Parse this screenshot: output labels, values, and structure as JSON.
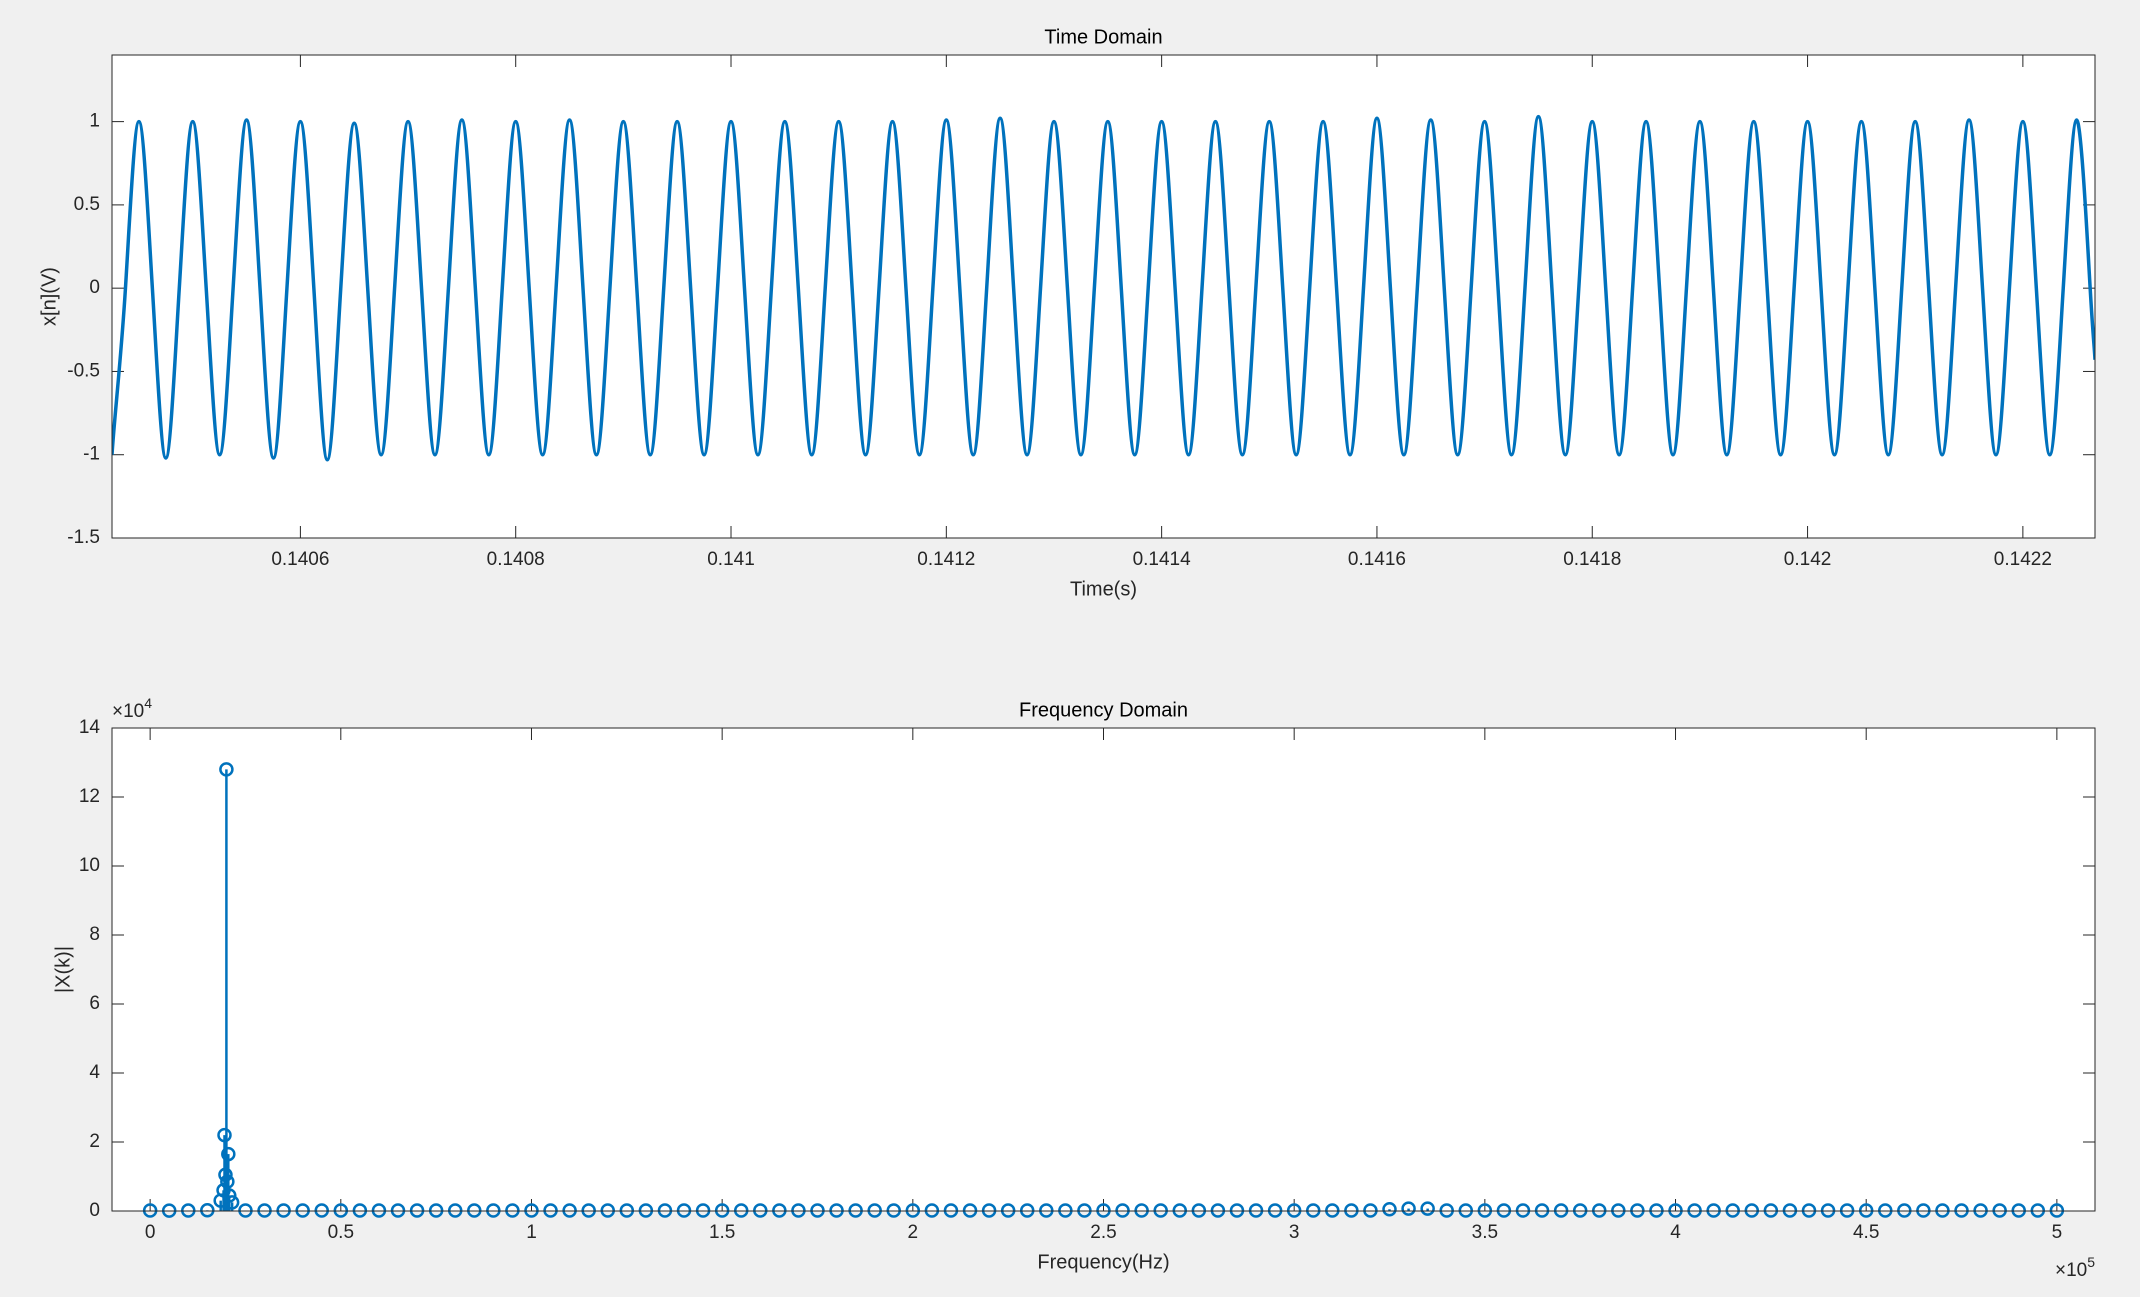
{
  "chart_data": [
    {
      "type": "line",
      "title": "Time Domain",
      "xlabel": "Time(s)",
      "ylabel": "x[n](V)",
      "xlim": [
        0.140425,
        0.142267
      ],
      "ylim": [
        -1.5,
        1.4
      ],
      "xticks": [
        0.1406,
        0.1408,
        0.141,
        0.1412,
        0.1414,
        0.1416,
        0.1418,
        0.142,
        0.1422
      ],
      "yticks": [
        -1.5,
        -1,
        -0.5,
        0,
        0.5,
        1
      ],
      "x": [
        0.140425,
        0.1404375,
        0.14045,
        0.1404625,
        0.140475,
        0.1404875,
        0.1405,
        0.1405125,
        0.140525,
        0.1405375,
        0.14055,
        0.1405625,
        0.140575,
        0.1405875,
        0.1406,
        0.1406125,
        0.140625,
        0.1406375,
        0.14065,
        0.1406625,
        0.140675,
        0.1406875,
        0.1407,
        0.1407125,
        0.140725,
        0.1407375,
        0.14075,
        0.1407625,
        0.140775,
        0.1407875,
        0.1408,
        0.1408125,
        0.140825,
        0.1408375,
        0.14085,
        0.1408625,
        0.140875,
        0.1408875,
        0.1409,
        0.1409125,
        0.140925,
        0.1409375,
        0.14095,
        0.1409625,
        0.140975,
        0.1409875,
        0.141,
        0.1410125,
        0.141025,
        0.1410375,
        0.14105,
        0.1410625,
        0.141075,
        0.1410875,
        0.1411,
        0.1411125,
        0.141125,
        0.1411375,
        0.14115,
        0.1411625,
        0.141175,
        0.1411875,
        0.1412,
        0.1412125,
        0.141225,
        0.1412375,
        0.14125,
        0.1412625,
        0.141275,
        0.1412875,
        0.1413,
        0.1413125,
        0.141325,
        0.1413375,
        0.14135,
        0.1413625,
        0.141375,
        0.1413875,
        0.1414,
        0.1414125,
        0.141425,
        0.1414375,
        0.14145,
        0.1414625,
        0.141475,
        0.1414875,
        0.1415,
        0.1415125,
        0.141525,
        0.1415375,
        0.14155,
        0.1415625,
        0.141575,
        0.1415875,
        0.1416,
        0.1416125,
        0.141625,
        0.1416375,
        0.14165,
        0.1416625,
        0.141675,
        0.1416875,
        0.1417,
        0.1417125,
        0.141725,
        0.1417375,
        0.14175,
        0.1417625,
        0.141775,
        0.1417875,
        0.1418,
        0.1418125,
        0.141825,
        0.1418375,
        0.14185,
        0.1418625,
        0.141875,
        0.1418875,
        0.1419,
        0.1419125,
        0.141925,
        0.1419375,
        0.14195,
        0.1419625,
        0.141975,
        0.1419875,
        0.142,
        0.1420125,
        0.142025,
        0.1420375,
        0.14205,
        0.1420625,
        0.142075,
        0.1420875,
        0.1421,
        0.1421125,
        0.142125,
        0.1421375,
        0.14215,
        0.1421625,
        0.142175,
        0.1421875,
        0.1422,
        0.1422125,
        0.142225,
        0.1422375,
        0.14225,
        0.1422625,
        0.142267
      ],
      "series": [
        {
          "color": "#0072bd",
          "values": [
            -1,
            0,
            1,
            0,
            -1.02,
            0,
            1,
            0,
            -1,
            0,
            1.01,
            0,
            -1.02,
            0,
            1,
            0,
            -1.03,
            0,
            0.99,
            0,
            -1,
            0,
            1,
            0,
            -1,
            0,
            1.01,
            0,
            -1,
            0,
            1,
            0,
            -1,
            0,
            1.01,
            0,
            -1,
            0,
            1,
            0,
            -1,
            0,
            1,
            0,
            -1,
            0,
            1,
            0,
            -1,
            0,
            1,
            0,
            -1,
            0,
            1,
            0,
            -1,
            0,
            1,
            0,
            -1,
            0,
            1.01,
            0,
            -1,
            0,
            1.02,
            0,
            -1,
            0,
            1,
            0,
            -1,
            0,
            1,
            0,
            -1,
            0,
            1,
            0,
            -1,
            0,
            1,
            0,
            -1,
            0,
            1,
            0,
            -1,
            0,
            1,
            0,
            -1,
            0,
            1.02,
            0,
            -1,
            0,
            1.01,
            0,
            -1,
            0,
            1,
            0,
            -1,
            0,
            1.03,
            0,
            -1,
            0,
            1,
            0,
            -1,
            0,
            1,
            0,
            -1,
            0,
            1,
            0,
            -1,
            0,
            1,
            0,
            -1,
            0,
            1,
            0,
            -1,
            0,
            1,
            0,
            -1,
            0,
            1,
            0,
            -1,
            0,
            1.01,
            0,
            -1,
            0,
            1,
            0,
            -1,
            0,
            1.01,
            0,
            -0.43
          ]
        }
      ]
    },
    {
      "type": "stem",
      "title": "Frequency Domain",
      "xlabel": "Frequency(Hz)",
      "ylabel": "|X(k)|",
      "y_scale_label": {
        "base": "×10",
        "exponent": "4"
      },
      "x_scale_label": {
        "base": "×10",
        "exponent": "5"
      },
      "xlim": [
        -10000,
        510000
      ],
      "ylim": [
        0,
        140000
      ],
      "xticks": [
        0,
        {
          "value": 50000,
          "label": "0.5"
        },
        {
          "value": 100000,
          "label": "1"
        },
        {
          "value": 150000,
          "label": "1.5"
        },
        {
          "value": 200000,
          "label": "2"
        },
        {
          "value": 250000,
          "label": "2.5"
        },
        {
          "value": 300000,
          "label": "3"
        },
        {
          "value": 350000,
          "label": "3.5"
        },
        {
          "value": 400000,
          "label": "4"
        },
        {
          "value": 450000,
          "label": "4.5"
        },
        {
          "value": 500000,
          "label": "5"
        }
      ],
      "yticks": [
        0,
        {
          "value": 20000,
          "label": "2"
        },
        {
          "value": 40000,
          "label": "4"
        },
        {
          "value": 60000,
          "label": "6"
        },
        {
          "value": 80000,
          "label": "8"
        },
        {
          "value": 100000,
          "label": "10"
        },
        {
          "value": 120000,
          "label": "12"
        },
        {
          "value": 140000,
          "label": "14"
        }
      ],
      "x": [
        0,
        5000,
        10000,
        15000,
        18500,
        19250,
        19500,
        19750,
        20000,
        20250,
        20500,
        20750,
        21500,
        25000,
        30000,
        35000,
        40000,
        45000,
        50000,
        55000,
        60000,
        65000,
        70000,
        75000,
        80000,
        85000,
        90000,
        95000,
        100000,
        105000,
        110000,
        115000,
        120000,
        125000,
        130000,
        135000,
        140000,
        145000,
        150000,
        155000,
        160000,
        165000,
        170000,
        175000,
        180000,
        185000,
        190000,
        195000,
        200000,
        205000,
        210000,
        215000,
        220000,
        225000,
        230000,
        235000,
        240000,
        245000,
        250000,
        255000,
        260000,
        265000,
        270000,
        275000,
        280000,
        285000,
        290000,
        295000,
        300000,
        305000,
        310000,
        315000,
        320000,
        325000,
        330000,
        335000,
        340000,
        345000,
        350000,
        355000,
        360000,
        365000,
        370000,
        375000,
        380000,
        385000,
        390000,
        395000,
        400000,
        405000,
        410000,
        415000,
        420000,
        425000,
        430000,
        435000,
        440000,
        445000,
        450000,
        455000,
        460000,
        465000,
        470000,
        475000,
        480000,
        485000,
        490000,
        495000,
        500000
      ],
      "series": [
        {
          "color": "#0072bd",
          "values": [
            150,
            120,
            130,
            200,
            3000,
            6000,
            22000,
            10500,
            128000,
            8500,
            16500,
            4500,
            2500,
            150,
            150,
            150,
            150,
            150,
            150,
            150,
            150,
            150,
            150,
            150,
            150,
            150,
            150,
            150,
            150,
            150,
            150,
            150,
            150,
            150,
            150,
            150,
            150,
            150,
            150,
            150,
            150,
            150,
            150,
            150,
            150,
            150,
            150,
            150,
            150,
            150,
            150,
            150,
            150,
            150,
            150,
            150,
            150,
            150,
            150,
            150,
            150,
            150,
            150,
            150,
            150,
            150,
            150,
            150,
            150,
            150,
            150,
            150,
            150,
            500,
            700,
            700,
            150,
            150,
            150,
            150,
            150,
            150,
            150,
            150,
            150,
            150,
            150,
            150,
            150,
            150,
            150,
            150,
            150,
            150,
            150,
            150,
            150,
            150,
            150,
            150,
            150,
            150,
            150,
            150,
            150,
            150,
            150,
            150,
            150
          ]
        }
      ]
    }
  ]
}
